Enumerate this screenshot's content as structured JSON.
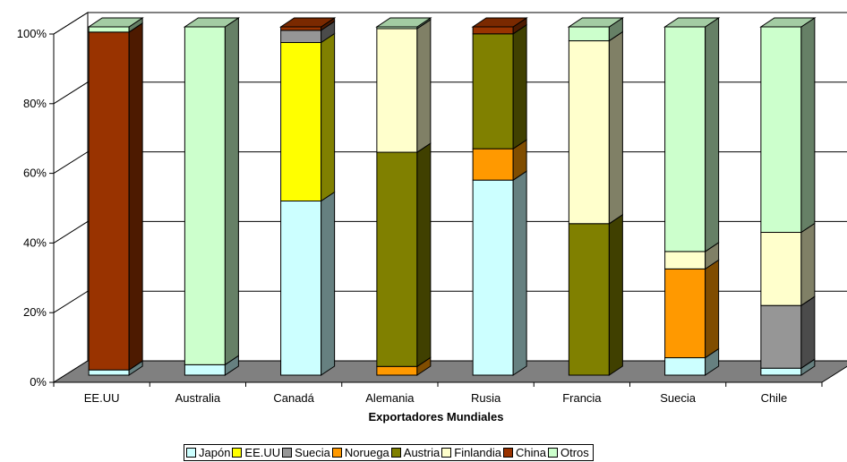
{
  "chart_data": {
    "type": "bar",
    "stacked": true,
    "percent": true,
    "three_d": true,
    "title": "",
    "xlabel": "Exportadores Mundiales",
    "ylabel": "",
    "ylim": [
      0,
      100
    ],
    "y_ticks": [
      "0%",
      "20%",
      "40%",
      "60%",
      "80%",
      "100%"
    ],
    "categories": [
      "EE.UU",
      "Australia",
      "Canadá",
      "Alemania",
      "Rusia",
      "Francia",
      "Suecia",
      "Chile"
    ],
    "series": [
      {
        "name": "Japón",
        "color": "#CCFFFF",
        "values": [
          1.5,
          3,
          50,
          0,
          56,
          0,
          5,
          2
        ]
      },
      {
        "name": "EE.UU",
        "color": "#FFFF00",
        "values": [
          0,
          0,
          45.5,
          0,
          0,
          0,
          0,
          0
        ]
      },
      {
        "name": "Suecia",
        "color": "#969696",
        "values": [
          0,
          0,
          3.5,
          0,
          0,
          0,
          0,
          18
        ]
      },
      {
        "name": "Noruega",
        "color": "#FF9900",
        "values": [
          0,
          0,
          0,
          2.5,
          9,
          0,
          25.5,
          0
        ]
      },
      {
        "name": "Austria",
        "color": "#808000",
        "values": [
          0,
          0,
          0,
          61.5,
          33,
          43.5,
          0,
          0
        ]
      },
      {
        "name": "Finlandia",
        "color": "#FFFFCC",
        "values": [
          0,
          0,
          0,
          35.5,
          0,
          52.5,
          5,
          21
        ]
      },
      {
        "name": "China",
        "color": "#993300",
        "values": [
          97,
          0,
          1,
          0,
          2,
          0,
          0,
          0
        ]
      },
      {
        "name": "Otros",
        "color": "#CCFFCC",
        "values": [
          1.5,
          97,
          0,
          0.5,
          0,
          4,
          64.5,
          59
        ]
      }
    ],
    "grid": true,
    "legend_position": "bottom"
  }
}
